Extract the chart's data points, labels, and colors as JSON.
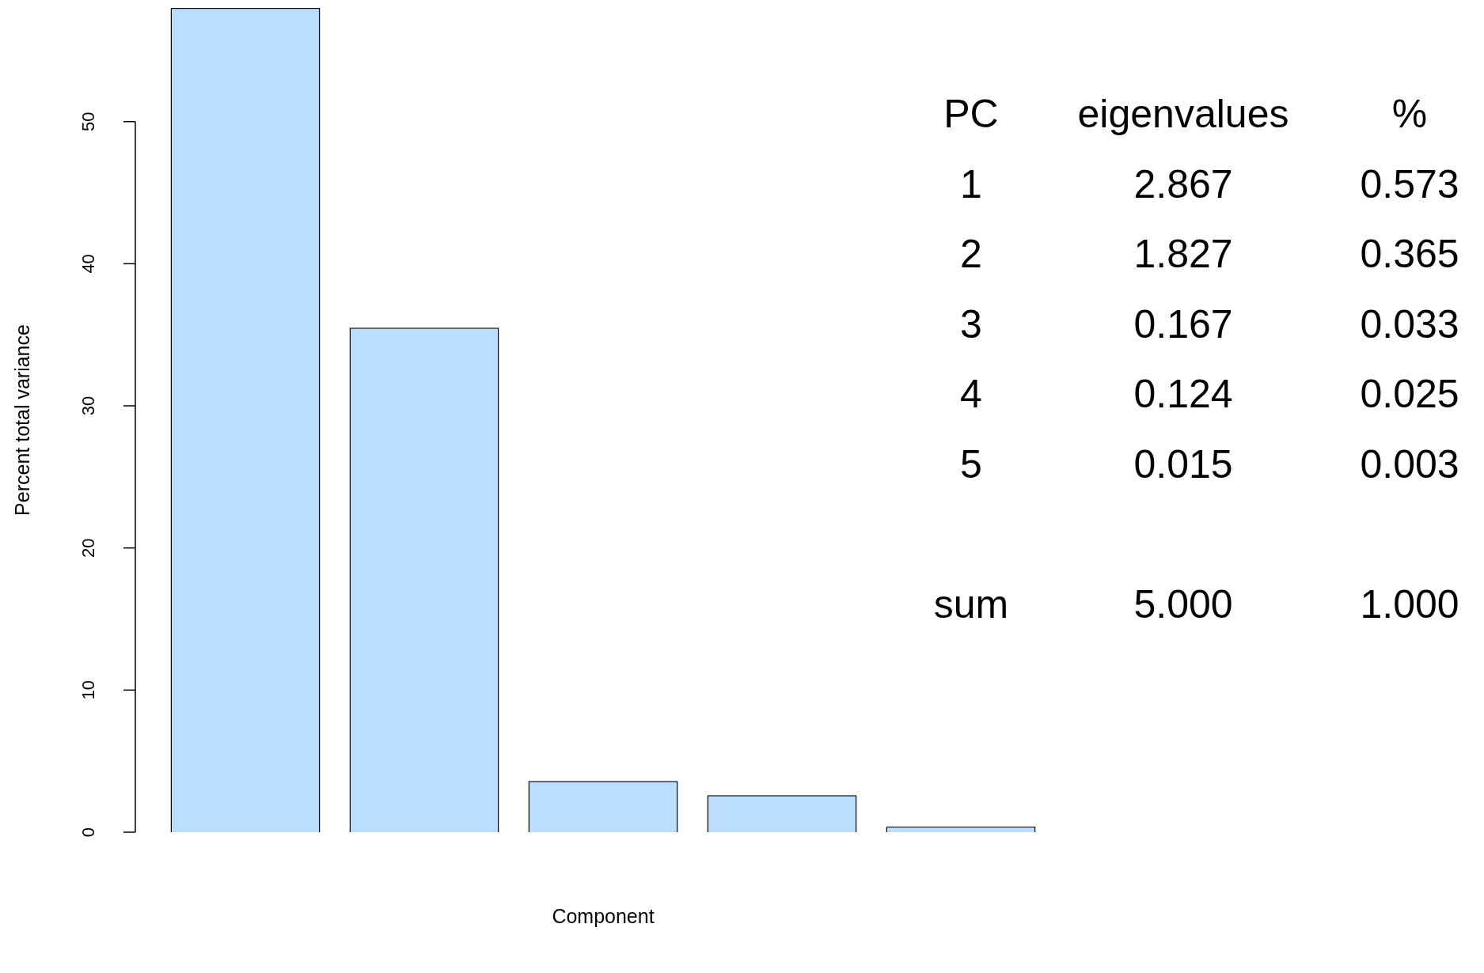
{
  "chart_data": {
    "type": "bar",
    "xlabel": "Component",
    "ylabel": "Percent total variance",
    "categories": [
      null,
      null,
      null,
      null,
      null
    ],
    "values": [
      58.0,
      35.5,
      3.6,
      2.6,
      0.4
    ],
    "color": "#bbddff",
    "ylim": [
      0,
      58
    ],
    "yticks": [
      0,
      10,
      20,
      30,
      40,
      50
    ],
    "legend": false,
    "annotations": [
      "PC",
      "eigenvalues",
      "%",
      "1",
      "2.867",
      "0.573",
      "2",
      "1.827",
      "0.365",
      "3",
      "0.167",
      "0.033",
      "4",
      "0.124",
      "0.025",
      "5",
      "0.015",
      "0.003",
      "sum",
      "5.000",
      "1.000"
    ]
  }
}
